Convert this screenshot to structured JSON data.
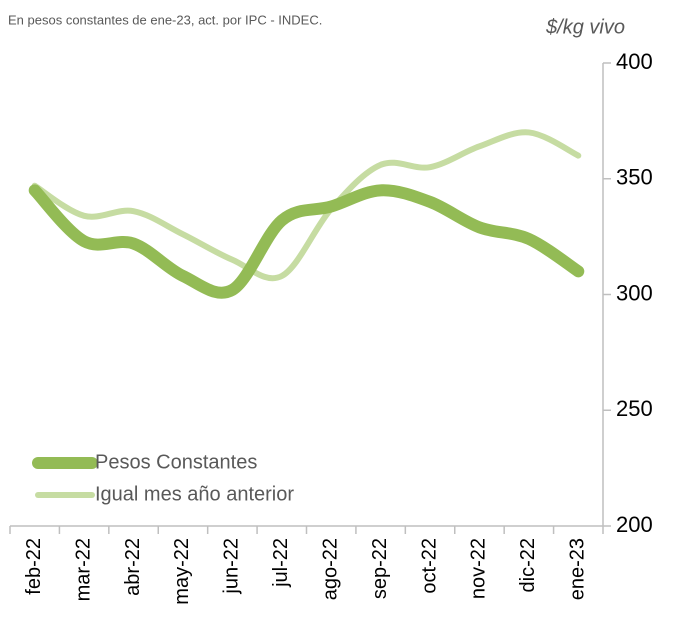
{
  "chart_data": {
    "type": "line",
    "subtitle": "En pesos constantes de ene-23, act. por IPC - INDEC.",
    "y_label": "$/kg vivo",
    "categories": [
      "feb-22",
      "mar-22",
      "abr-22",
      "may-22",
      "jun-22",
      "jul-22",
      "ago-22",
      "sep-22",
      "oct-22",
      "nov-22",
      "dic-22",
      "ene-23"
    ],
    "series": [
      {
        "name": "Pesos Constantes",
        "color": "#93bb55",
        "values": [
          345,
          323,
          322,
          308,
          302,
          332,
          338,
          345,
          340,
          329,
          324,
          310
        ]
      },
      {
        "name": "Igual mes año anterior",
        "color": "#c6dca2",
        "values": [
          347,
          334,
          336,
          326,
          315,
          308,
          337,
          356,
          355,
          364,
          370,
          360
        ]
      }
    ],
    "ylim": [
      200,
      400
    ],
    "yticks": [
      200,
      250,
      300,
      350,
      400
    ],
    "legend": "lower-left"
  }
}
